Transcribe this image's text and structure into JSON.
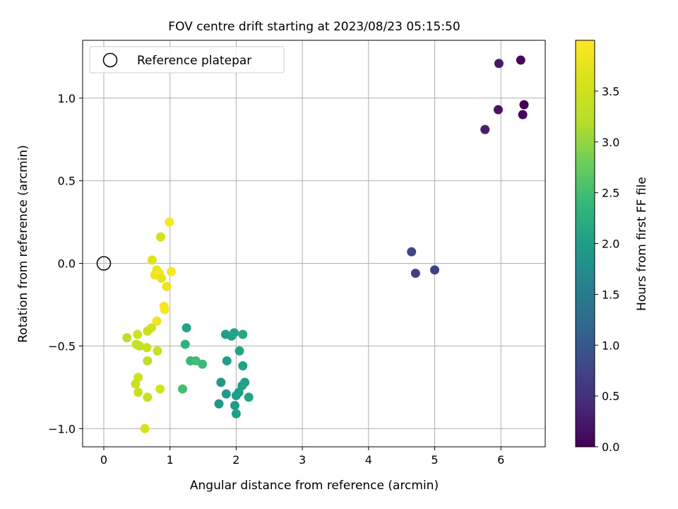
{
  "chart_data": {
    "type": "scatter",
    "title": "FOV centre drift starting at 2023/08/23 05:15:50",
    "xlabel": "Angular distance from reference (arcmin)",
    "ylabel": "Rotation from reference (arcmin)",
    "xlim": [
      -0.32,
      6.67
    ],
    "ylim": [
      -1.11,
      1.35
    ],
    "xticks": [
      0,
      1,
      2,
      3,
      4,
      5,
      6
    ],
    "xtick_labels": [
      "0",
      "1",
      "2",
      "3",
      "4",
      "5",
      "6"
    ],
    "yticks": [
      -1.0,
      -0.5,
      0.0,
      0.5,
      1.0
    ],
    "ytick_labels": [
      "−1.0",
      "−0.5",
      "0.0",
      "0.5",
      "1.0"
    ],
    "grid": true,
    "legend": {
      "position": "top-left",
      "entries": [
        "Reference platepar"
      ]
    },
    "reference_point": {
      "x": 0,
      "y": 0
    },
    "colorbar": {
      "label": "Hours from first FF file",
      "colormap": "viridis",
      "range": [
        0.0,
        4.0
      ],
      "ticks": [
        0.0,
        0.5,
        1.0,
        1.5,
        2.0,
        2.5,
        3.0,
        3.5
      ],
      "tick_labels": [
        "0.0",
        "0.5",
        "1.0",
        "1.5",
        "2.0",
        "2.5",
        "3.0",
        "3.5"
      ]
    },
    "points": [
      {
        "x": 6.3,
        "y": 1.23,
        "c": 0.08
      },
      {
        "x": 5.97,
        "y": 1.21,
        "c": 0.25
      },
      {
        "x": 6.35,
        "y": 0.96,
        "c": 0.02
      },
      {
        "x": 5.96,
        "y": 0.93,
        "c": 0.2
      },
      {
        "x": 6.33,
        "y": 0.9,
        "c": 0.05
      },
      {
        "x": 5.76,
        "y": 0.81,
        "c": 0.3
      },
      {
        "x": 4.65,
        "y": 0.07,
        "c": 0.75
      },
      {
        "x": 4.71,
        "y": -0.06,
        "c": 0.7
      },
      {
        "x": 5.0,
        "y": -0.04,
        "c": 0.72
      },
      {
        "x": 1.25,
        "y": -0.39,
        "c": 2.1
      },
      {
        "x": 1.23,
        "y": -0.49,
        "c": 2.3
      },
      {
        "x": 1.31,
        "y": -0.59,
        "c": 2.4
      },
      {
        "x": 1.39,
        "y": -0.59,
        "c": 2.5
      },
      {
        "x": 1.49,
        "y": -0.61,
        "c": 2.45
      },
      {
        "x": 1.19,
        "y": -0.76,
        "c": 2.5
      },
      {
        "x": 1.84,
        "y": -0.43,
        "c": 2.0
      },
      {
        "x": 1.93,
        "y": -0.44,
        "c": 2.05
      },
      {
        "x": 1.97,
        "y": -0.42,
        "c": 2.1
      },
      {
        "x": 2.1,
        "y": -0.43,
        "c": 2.15
      },
      {
        "x": 2.05,
        "y": -0.53,
        "c": 2.1
      },
      {
        "x": 1.86,
        "y": -0.59,
        "c": 2.0
      },
      {
        "x": 2.1,
        "y": -0.62,
        "c": 2.05
      },
      {
        "x": 1.77,
        "y": -0.72,
        "c": 1.9
      },
      {
        "x": 2.13,
        "y": -0.72,
        "c": 2.0
      },
      {
        "x": 2.09,
        "y": -0.74,
        "c": 2.05
      },
      {
        "x": 1.85,
        "y": -0.79,
        "c": 1.95
      },
      {
        "x": 2.04,
        "y": -0.78,
        "c": 2.0
      },
      {
        "x": 2.0,
        "y": -0.8,
        "c": 2.0
      },
      {
        "x": 2.19,
        "y": -0.81,
        "c": 2.1
      },
      {
        "x": 1.74,
        "y": -0.85,
        "c": 1.9
      },
      {
        "x": 1.98,
        "y": -0.86,
        "c": 1.95
      },
      {
        "x": 2.0,
        "y": -0.91,
        "c": 2.0
      },
      {
        "x": 0.99,
        "y": 0.25,
        "c": 3.95
      },
      {
        "x": 0.86,
        "y": 0.16,
        "c": 3.55
      },
      {
        "x": 0.73,
        "y": 0.02,
        "c": 3.7
      },
      {
        "x": 0.8,
        "y": -0.04,
        "c": 3.8
      },
      {
        "x": 0.77,
        "y": -0.07,
        "c": 3.85
      },
      {
        "x": 0.84,
        "y": -0.06,
        "c": 3.9
      },
      {
        "x": 0.87,
        "y": -0.09,
        "c": 3.75
      },
      {
        "x": 1.02,
        "y": -0.05,
        "c": 3.95
      },
      {
        "x": 0.95,
        "y": -0.14,
        "c": 3.8
      },
      {
        "x": 0.91,
        "y": -0.26,
        "c": 3.9
      },
      {
        "x": 0.92,
        "y": -0.28,
        "c": 3.95
      },
      {
        "x": 0.8,
        "y": -0.35,
        "c": 3.85
      },
      {
        "x": 0.72,
        "y": -0.39,
        "c": 3.55
      },
      {
        "x": 0.66,
        "y": -0.41,
        "c": 3.45
      },
      {
        "x": 0.51,
        "y": -0.43,
        "c": 3.5
      },
      {
        "x": 0.35,
        "y": -0.45,
        "c": 3.25
      },
      {
        "x": 0.49,
        "y": -0.49,
        "c": 3.4
      },
      {
        "x": 0.54,
        "y": -0.5,
        "c": 3.35
      },
      {
        "x": 0.65,
        "y": -0.51,
        "c": 3.45
      },
      {
        "x": 0.81,
        "y": -0.53,
        "c": 3.4
      },
      {
        "x": 0.66,
        "y": -0.59,
        "c": 3.3
      },
      {
        "x": 0.52,
        "y": -0.69,
        "c": 3.5
      },
      {
        "x": 0.48,
        "y": -0.73,
        "c": 3.45
      },
      {
        "x": 0.85,
        "y": -0.76,
        "c": 3.55
      },
      {
        "x": 0.52,
        "y": -0.78,
        "c": 3.45
      },
      {
        "x": 0.66,
        "y": -0.81,
        "c": 3.4
      },
      {
        "x": 0.62,
        "y": -1.0,
        "c": 3.6
      }
    ]
  }
}
